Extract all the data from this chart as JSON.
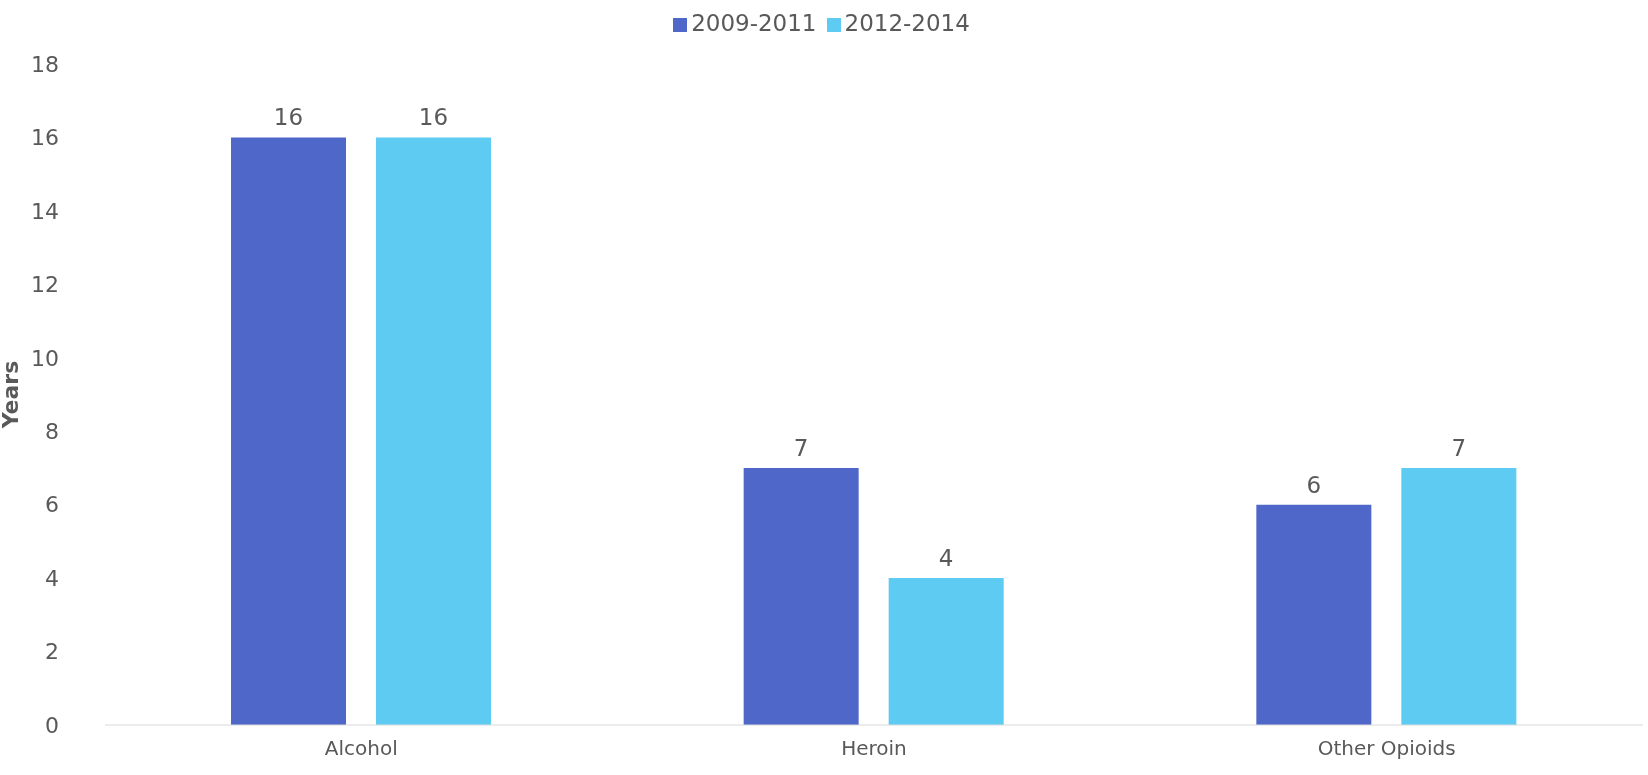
{
  "chart_data": {
    "type": "bar",
    "ylabel": "Years",
    "categories": [
      "Alcohol",
      "Heroin",
      "Other Opioids"
    ],
    "series": [
      {
        "name": "2009-2011",
        "color": "#4f67c8",
        "values": [
          16,
          7,
          6
        ]
      },
      {
        "name": "2012-2014",
        "color": "#5ecbf2",
        "values": [
          16,
          4,
          7
        ]
      }
    ],
    "ylim": [
      0,
      18
    ],
    "yticks": [
      0,
      2,
      4,
      6,
      8,
      10,
      12,
      14,
      16,
      18
    ],
    "grid": false,
    "legend": "top",
    "data_labels": true
  }
}
